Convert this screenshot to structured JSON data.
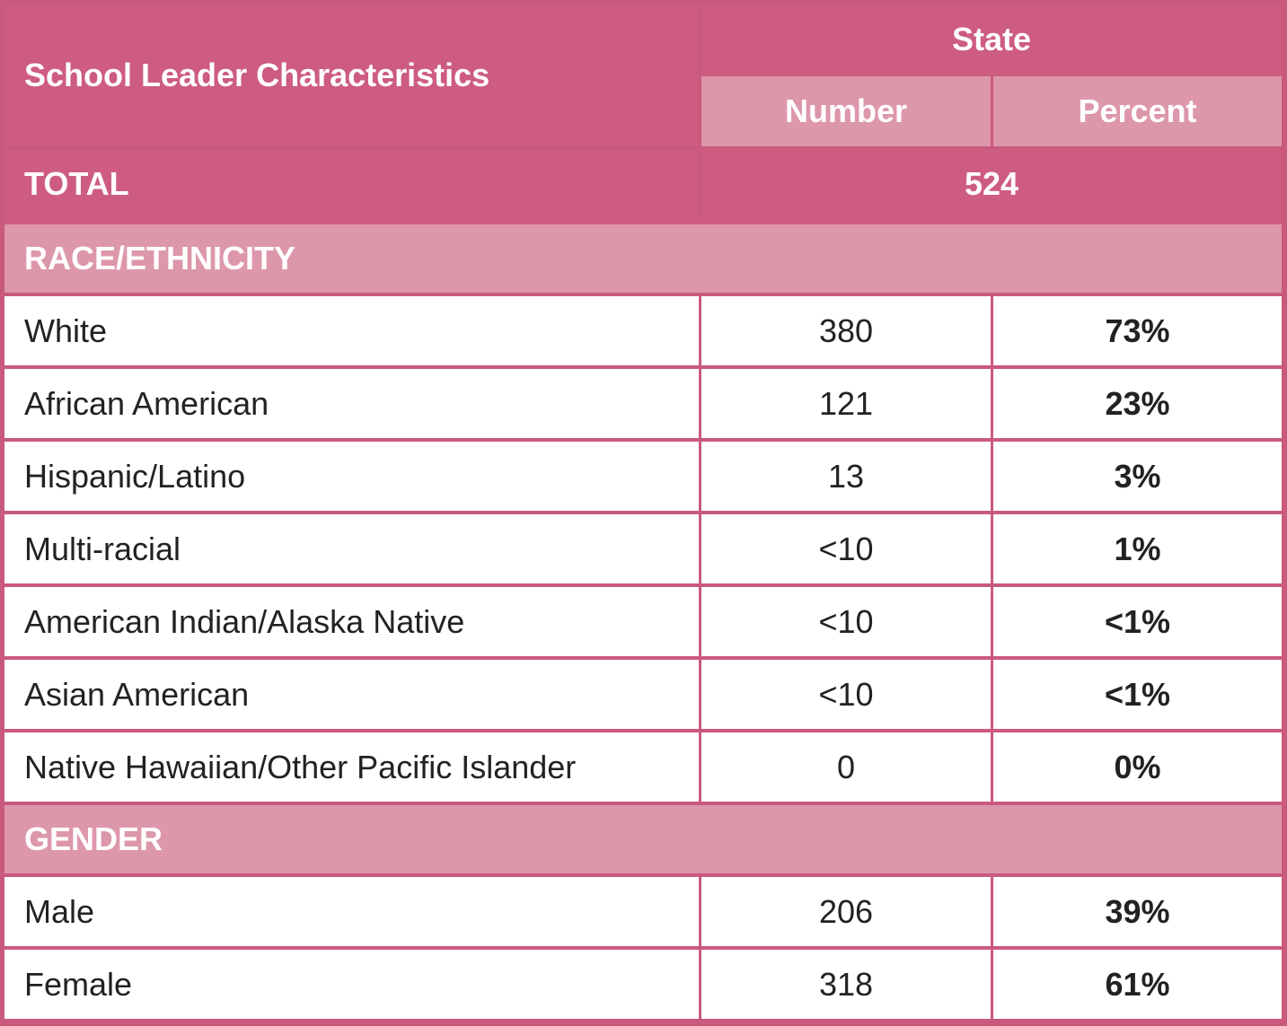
{
  "header": {
    "title": "School Leader Characteristics",
    "group": "State",
    "columns": [
      "Number",
      "Percent"
    ]
  },
  "total": {
    "label": "TOTAL",
    "value": 524
  },
  "sections": [
    {
      "title": "RACE/ETHNICITY",
      "rows": [
        [
          "White",
          380,
          "73%"
        ],
        [
          "African American",
          121,
          "23%"
        ],
        [
          "Hispanic/Latino",
          13,
          "3%"
        ],
        [
          "Multi-racial",
          "<10",
          "1%"
        ],
        [
          "American Indian/Alaska Native",
          "<10",
          "<1%"
        ],
        [
          "Asian American",
          "<10",
          "<1%"
        ],
        [
          "Native Hawaiian/Other Pacific Islander",
          0,
          "0%"
        ]
      ]
    },
    {
      "title": "GENDER",
      "rows": [
        [
          "Male",
          206,
          "39%"
        ],
        [
          "Female",
          318,
          "61%"
        ]
      ]
    }
  ]
}
